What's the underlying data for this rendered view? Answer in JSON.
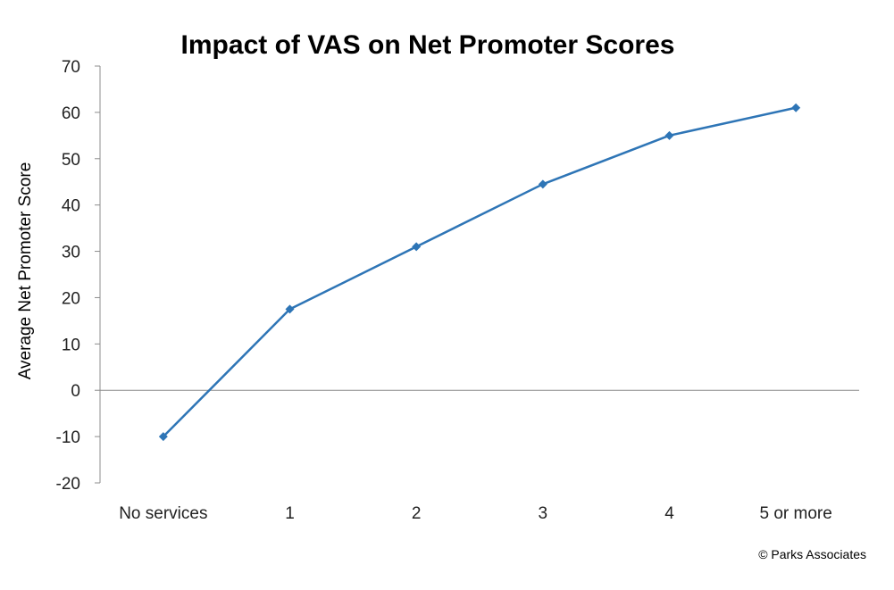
{
  "chart_data": {
    "type": "line",
    "title": "Impact of VAS on Net Promoter Scores",
    "xlabel": "",
    "ylabel": "Average Net Promoter Score",
    "categories": [
      "No services",
      "1",
      "2",
      "3",
      "4",
      "5 or more"
    ],
    "series": [
      {
        "values": [
          -10,
          17.5,
          31,
          44.5,
          55,
          61
        ],
        "color": "#2e75b6",
        "marker": "diamond"
      }
    ],
    "ylim": [
      -20,
      70
    ],
    "yticks": [
      -20,
      -10,
      0,
      10,
      20,
      30,
      40,
      50,
      60,
      70
    ],
    "grid": false,
    "legend": "none"
  },
  "credit": "© Parks Associates"
}
